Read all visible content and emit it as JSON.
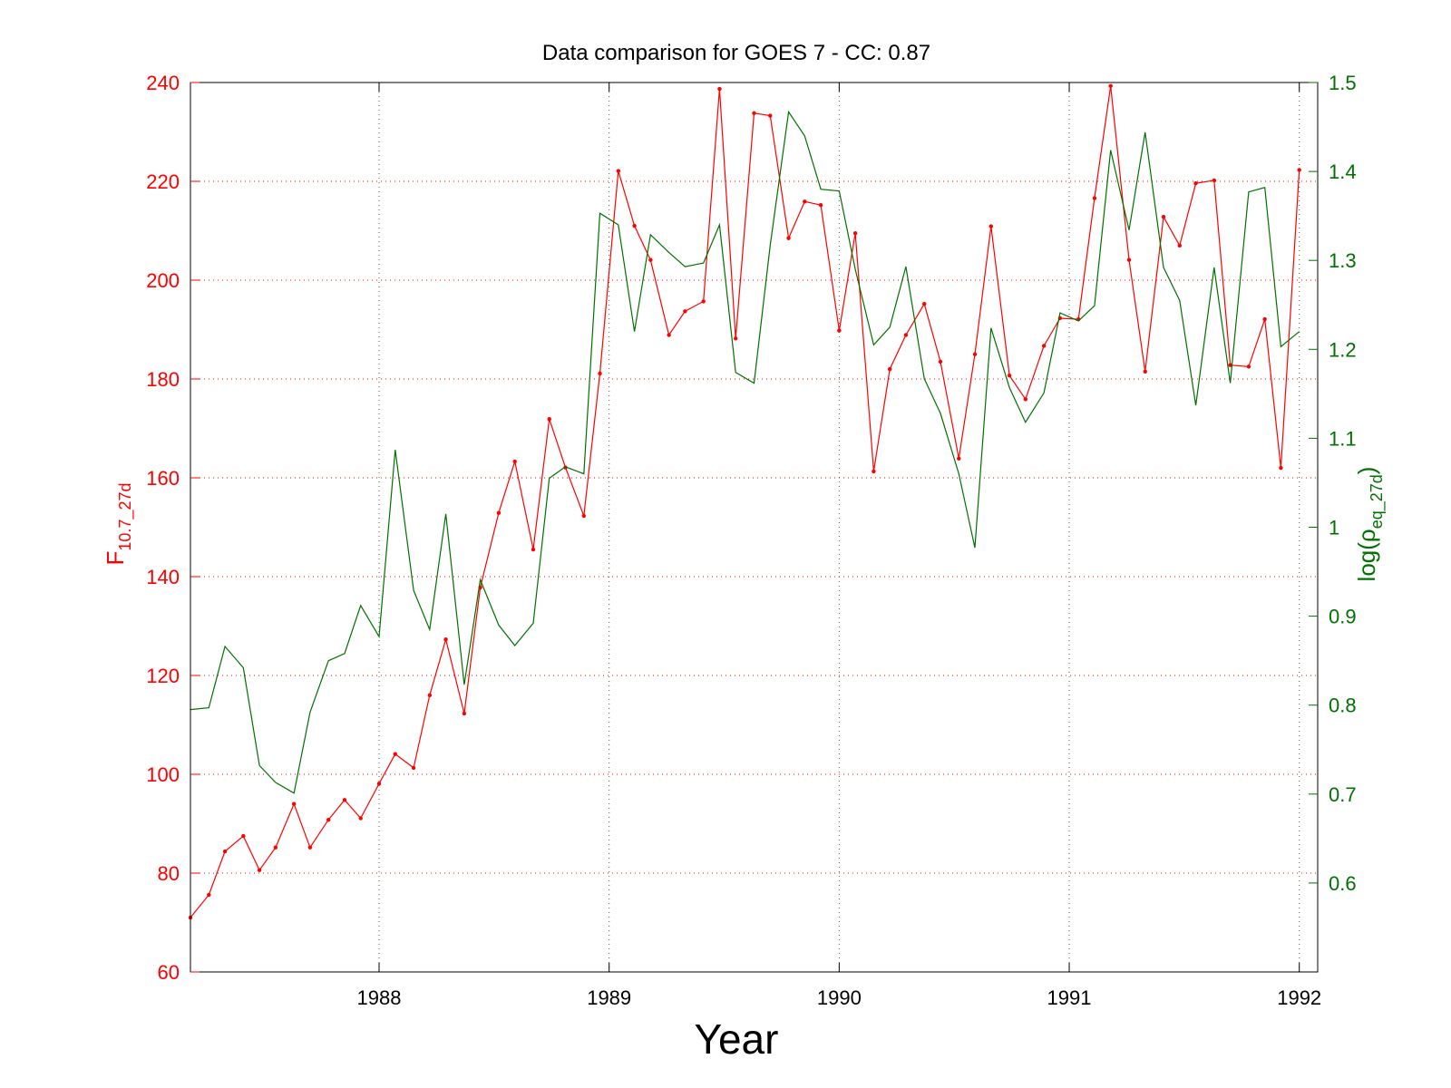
{
  "chart_data": {
    "type": "line",
    "title": "Data comparison for GOES 7 - CC: 0.87",
    "xlabel": "Year",
    "ylabel_left": {
      "main": "F",
      "sub": "10.7_27d"
    },
    "ylabel_right": {
      "pre": "log(ρ",
      "sub": "eq_27d",
      "post": ")"
    },
    "xlim": [
      1987.18,
      1992.08
    ],
    "ylim_left": [
      60,
      240
    ],
    "ylim_right": [
      0.5,
      1.5
    ],
    "x_ticks": [
      1988,
      1989,
      1990,
      1991,
      1992
    ],
    "x_tick_labels": [
      "1988",
      "1989",
      "1990",
      "1991",
      "1992"
    ],
    "y_left_ticks": [
      60,
      80,
      100,
      120,
      140,
      160,
      180,
      200,
      220,
      240
    ],
    "y_left_tick_labels": [
      "60",
      "80",
      "100",
      "120",
      "140",
      "160",
      "180",
      "200",
      "220",
      "240"
    ],
    "y_right_ticks": [
      0.6,
      0.7,
      0.8,
      0.9,
      1.0,
      1.1,
      1.2,
      1.3,
      1.4,
      1.5
    ],
    "y_right_tick_labels": [
      "0.6",
      "0.7",
      "0.8",
      "0.9",
      "1",
      "1.1",
      "1.2",
      "1.3",
      "1.4",
      "1.5"
    ],
    "grid": true,
    "x": [
      1987.18,
      1987.26,
      1987.33,
      1987.41,
      1987.48,
      1987.55,
      1987.63,
      1987.7,
      1987.78,
      1987.85,
      1987.92,
      1988.0,
      1988.07,
      1988.15,
      1988.22,
      1988.29,
      1988.37,
      1988.44,
      1988.52,
      1988.59,
      1988.67,
      1988.74,
      1988.81,
      1988.89,
      1988.96,
      1989.04,
      1989.11,
      1989.18,
      1989.26,
      1989.33,
      1989.41,
      1989.48,
      1989.55,
      1989.63,
      1989.7,
      1989.78,
      1989.85,
      1989.92,
      1990.0,
      1990.07,
      1990.15,
      1990.22,
      1990.29,
      1990.37,
      1990.44,
      1990.52,
      1990.59,
      1990.66,
      1990.74,
      1990.81,
      1990.89,
      1990.96,
      1991.04,
      1991.11,
      1991.18,
      1991.26,
      1991.33,
      1991.41,
      1991.48,
      1991.55,
      1991.63,
      1991.7,
      1991.78,
      1991.85,
      1991.92,
      1992.0
    ],
    "series": [
      {
        "axis": "left",
        "color": "#ff0000",
        "markers": true,
        "values": [
          71.0,
          75.6,
          84.4,
          87.5,
          80.6,
          85.2,
          94.0,
          85.2,
          90.8,
          94.8,
          91.1,
          98.1,
          104.1,
          101.3,
          116.0,
          127.3,
          112.3,
          137.8,
          152.9,
          163.3,
          145.5,
          171.9,
          162.1,
          152.3,
          181.1,
          222.1,
          211.0,
          204.1,
          188.9,
          193.7,
          195.7,
          238.7,
          188.2,
          233.8,
          233.3,
          208.5,
          215.9,
          215.2,
          189.8,
          209.5,
          161.3,
          182.0,
          188.9,
          195.2,
          183.5,
          163.9,
          185.0,
          210.9,
          180.7,
          175.9,
          186.7,
          192.3,
          192.1,
          216.6,
          239.3,
          204.1,
          181.5,
          212.8,
          207.0,
          219.6,
          220.2,
          182.8,
          182.5,
          192.1,
          162.0,
          222.3
        ]
      },
      {
        "axis": "right",
        "color": "#007000",
        "markers": false,
        "values": [
          0.795,
          0.797,
          0.866,
          0.842,
          0.732,
          0.713,
          0.701,
          0.792,
          0.85,
          0.858,
          0.912,
          0.877,
          1.087,
          0.929,
          0.885,
          1.015,
          0.823,
          0.941,
          0.89,
          0.867,
          0.892,
          1.055,
          1.068,
          1.06,
          1.353,
          1.34,
          1.22,
          1.329,
          1.309,
          1.293,
          1.297,
          1.34,
          1.174,
          1.162,
          1.317,
          1.467,
          1.44,
          1.38,
          1.378,
          1.29,
          1.205,
          1.225,
          1.293,
          1.167,
          1.128,
          1.06,
          0.977,
          1.224,
          1.157,
          1.118,
          1.151,
          1.241,
          1.232,
          1.249,
          1.424,
          1.334,
          1.444,
          1.292,
          1.255,
          1.137,
          1.292,
          1.162,
          1.377,
          1.382,
          1.203,
          1.22
        ]
      }
    ]
  }
}
